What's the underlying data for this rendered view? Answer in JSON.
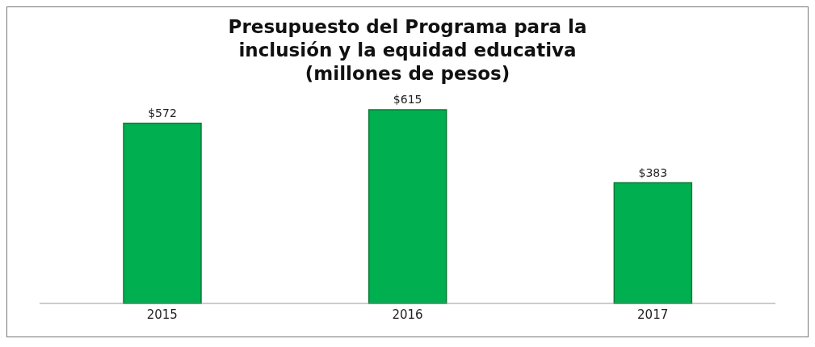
{
  "chart_data": {
    "type": "bar",
    "title": "Presupuesto del Programa para la\ninclusión y la equidad educativa\n(millones de pesos)",
    "categories": [
      "2015",
      "2016",
      "2017"
    ],
    "values": [
      572,
      615,
      383
    ],
    "value_labels": [
      "$572",
      "$615",
      "$383"
    ],
    "color": "#00b050"
  }
}
